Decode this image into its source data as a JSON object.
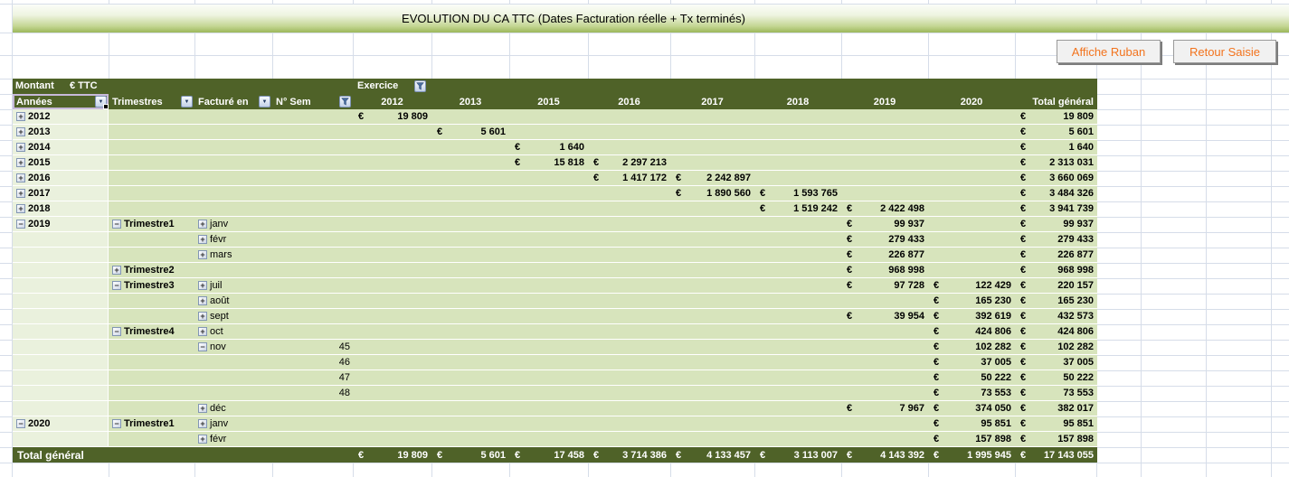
{
  "title": "EVOLUTION DU CA TTC (Dates Facturation réelle + Tx terminés)",
  "buttons": {
    "affiche_ruban": "Affiche Ruban",
    "retour_saisie": "Retour Saisie"
  },
  "icons": {
    "dropdown_symbol": "▼",
    "expand_symbol": "+",
    "collapse_symbol": "−",
    "filter_icon": "funnel"
  },
  "colors": {
    "header_green": "#4f6228",
    "cell_green": "#d7e4bc",
    "row_label_green": "#eaf1dd",
    "title_band_green": "#9cb85a",
    "button_text_orange": "#f2731d"
  },
  "pivot": {
    "measure_label": "Montant",
    "measure_unit": "€ TTC",
    "column_field_label": "Exercice",
    "row_fields": [
      {
        "label": "Années",
        "control": "dropdown"
      },
      {
        "label": "Trimestres",
        "control": "dropdown"
      },
      {
        "label": "Facturé en",
        "control": "dropdown"
      },
      {
        "label": "N° Sem",
        "control": "filter"
      }
    ],
    "year_columns": [
      "2012",
      "2013",
      "2015",
      "2016",
      "2017",
      "2018",
      "2019",
      "2020"
    ],
    "total_column_label": "Total général",
    "currency": "€",
    "rows": [
      {
        "annee": "2012",
        "annee_toggle": "plus",
        "values": [
          "19 809",
          "",
          "",
          "",
          "",
          "",
          "",
          ""
        ],
        "total": "19 809"
      },
      {
        "annee": "2013",
        "annee_toggle": "plus",
        "values": [
          "",
          "5 601",
          "",
          "",
          "",
          "",
          "",
          ""
        ],
        "total": "5 601"
      },
      {
        "annee": "2014",
        "annee_toggle": "plus",
        "values": [
          "",
          "",
          "1 640",
          "",
          "",
          "",
          "",
          ""
        ],
        "total": "1 640"
      },
      {
        "annee": "2015",
        "annee_toggle": "plus",
        "values": [
          "",
          "",
          "15 818",
          "2 297 213",
          "",
          "",
          "",
          ""
        ],
        "total": "2 313 031"
      },
      {
        "annee": "2016",
        "annee_toggle": "plus",
        "values": [
          "",
          "",
          "",
          "1 417 172",
          "2 242 897",
          "",
          "",
          ""
        ],
        "total": "3 660 069"
      },
      {
        "annee": "2017",
        "annee_toggle": "plus",
        "values": [
          "",
          "",
          "",
          "",
          "1 890 560",
          "1 593 765",
          "",
          ""
        ],
        "total": "3 484 326"
      },
      {
        "annee": "2018",
        "annee_toggle": "plus",
        "values": [
          "",
          "",
          "",
          "",
          "",
          "1 519 242",
          "2 422 498",
          ""
        ],
        "total": "3 941 739"
      },
      {
        "annee": "2019",
        "annee_toggle": "minus",
        "trimestre": "Trimestre1",
        "trimestre_toggle": "minus",
        "mois": "janv",
        "mois_toggle": "plus",
        "values": [
          "",
          "",
          "",
          "",
          "",
          "",
          "99 937",
          ""
        ],
        "total": "99 937"
      },
      {
        "mois": "févr",
        "mois_toggle": "plus",
        "values": [
          "",
          "",
          "",
          "",
          "",
          "",
          "279 433",
          ""
        ],
        "total": "279 433"
      },
      {
        "mois": "mars",
        "mois_toggle": "plus",
        "values": [
          "",
          "",
          "",
          "",
          "",
          "",
          "226 877",
          ""
        ],
        "total": "226 877"
      },
      {
        "trimestre": "Trimestre2",
        "trimestre_toggle": "plus",
        "values": [
          "",
          "",
          "",
          "",
          "",
          "",
          "968 998",
          ""
        ],
        "total": "968 998"
      },
      {
        "trimestre": "Trimestre3",
        "trimestre_toggle": "minus",
        "mois": "juil",
        "mois_toggle": "plus",
        "values": [
          "",
          "",
          "",
          "",
          "",
          "",
          "97 728",
          "122 429"
        ],
        "total": "220 157"
      },
      {
        "mois": "août",
        "mois_toggle": "plus",
        "values": [
          "",
          "",
          "",
          "",
          "",
          "",
          "",
          "165 230"
        ],
        "total": "165 230"
      },
      {
        "mois": "sept",
        "mois_toggle": "plus",
        "values": [
          "",
          "",
          "",
          "",
          "",
          "",
          "39 954",
          "392 619"
        ],
        "total": "432 573"
      },
      {
        "trimestre": "Trimestre4",
        "trimestre_toggle": "minus",
        "mois": "oct",
        "mois_toggle": "plus",
        "values": [
          "",
          "",
          "",
          "",
          "",
          "",
          "",
          "424 806"
        ],
        "total": "424 806"
      },
      {
        "mois": "nov",
        "mois_toggle": "minus",
        "sem": "45",
        "values": [
          "",
          "",
          "",
          "",
          "",
          "",
          "",
          "102 282"
        ],
        "total": "102 282"
      },
      {
        "sem": "46",
        "values": [
          "",
          "",
          "",
          "",
          "",
          "",
          "",
          "37 005"
        ],
        "total": "37 005"
      },
      {
        "sem": "47",
        "values": [
          "",
          "",
          "",
          "",
          "",
          "",
          "",
          "50 222"
        ],
        "total": "50 222"
      },
      {
        "sem": "48",
        "values": [
          "",
          "",
          "",
          "",
          "",
          "",
          "",
          "73 553"
        ],
        "total": "73 553"
      },
      {
        "mois": "déc",
        "mois_toggle": "plus",
        "values": [
          "",
          "",
          "",
          "",
          "",
          "",
          "7 967",
          "374 050"
        ],
        "total": "382 017"
      },
      {
        "annee": "2020",
        "annee_toggle": "minus",
        "trimestre": "Trimestre1",
        "trimestre_toggle": "minus",
        "mois": "janv",
        "mois_toggle": "plus",
        "values": [
          "",
          "",
          "",
          "",
          "",
          "",
          "",
          "95 851"
        ],
        "total": "95 851"
      },
      {
        "mois": "févr",
        "mois_toggle": "plus",
        "values": [
          "",
          "",
          "",
          "",
          "",
          "",
          "",
          "157 898"
        ],
        "total": "157 898"
      }
    ],
    "grand_total": {
      "label": "Total général",
      "values": [
        "19 809",
        "5 601",
        "17 458",
        "3 714 386",
        "4 133 457",
        "3 113 007",
        "4 143 392",
        "1 995 945"
      ],
      "total": "17 143 055"
    }
  }
}
